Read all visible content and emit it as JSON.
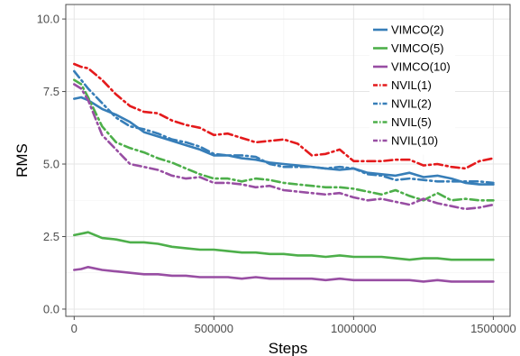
{
  "chart_data": {
    "type": "line",
    "title": "",
    "xlabel": "Steps",
    "ylabel": "RMS",
    "xlim": [
      -30000,
      1560000
    ],
    "ylim": [
      -0.25,
      10.5
    ],
    "xticks": [
      0,
      500000,
      1000000,
      1500000
    ],
    "xtick_labels": [
      "0",
      "500000",
      "1000000",
      "1500000"
    ],
    "yticks": [
      0.0,
      2.5,
      5.0,
      7.5,
      10.0
    ],
    "ytick_labels": [
      "0.0",
      "2.5",
      "5.0",
      "7.5",
      "10.0"
    ],
    "grid": true,
    "legend_position": "top-right",
    "series": [
      {
        "name": "VIMCO(2)",
        "color": "#377eb8",
        "dash": "solid",
        "x": [
          0,
          25000,
          50000,
          100000,
          150000,
          200000,
          250000,
          300000,
          350000,
          400000,
          450000,
          500000,
          550000,
          600000,
          650000,
          700000,
          750000,
          800000,
          850000,
          900000,
          950000,
          1000000,
          1050000,
          1100000,
          1150000,
          1200000,
          1250000,
          1300000,
          1350000,
          1400000,
          1450000,
          1500000
        ],
        "y": [
          7.25,
          7.3,
          7.2,
          6.9,
          6.7,
          6.45,
          6.1,
          5.95,
          5.8,
          5.65,
          5.5,
          5.3,
          5.3,
          5.2,
          5.15,
          5.05,
          5.0,
          4.95,
          4.9,
          4.85,
          4.8,
          4.85,
          4.7,
          4.65,
          4.6,
          4.7,
          4.55,
          4.6,
          4.5,
          4.35,
          4.3,
          4.3
        ]
      },
      {
        "name": "VIMCO(5)",
        "color": "#4daf4a",
        "dash": "solid",
        "x": [
          0,
          25000,
          50000,
          100000,
          150000,
          200000,
          250000,
          300000,
          350000,
          400000,
          450000,
          500000,
          550000,
          600000,
          650000,
          700000,
          750000,
          800000,
          850000,
          900000,
          950000,
          1000000,
          1050000,
          1100000,
          1150000,
          1200000,
          1250000,
          1300000,
          1350000,
          1400000,
          1450000,
          1500000
        ],
        "y": [
          2.55,
          2.6,
          2.65,
          2.45,
          2.4,
          2.3,
          2.3,
          2.25,
          2.15,
          2.1,
          2.05,
          2.05,
          2.0,
          1.95,
          1.95,
          1.9,
          1.9,
          1.85,
          1.85,
          1.8,
          1.85,
          1.8,
          1.8,
          1.8,
          1.75,
          1.7,
          1.75,
          1.75,
          1.7,
          1.7,
          1.7,
          1.7
        ]
      },
      {
        "name": "VIMCO(10)",
        "color": "#984ea3",
        "dash": "solid",
        "x": [
          0,
          25000,
          50000,
          100000,
          150000,
          200000,
          250000,
          300000,
          350000,
          400000,
          450000,
          500000,
          550000,
          600000,
          650000,
          700000,
          750000,
          800000,
          850000,
          900000,
          950000,
          1000000,
          1050000,
          1100000,
          1150000,
          1200000,
          1250000,
          1300000,
          1350000,
          1400000,
          1450000,
          1500000
        ],
        "y": [
          1.35,
          1.38,
          1.45,
          1.35,
          1.3,
          1.25,
          1.2,
          1.2,
          1.15,
          1.15,
          1.1,
          1.1,
          1.1,
          1.05,
          1.1,
          1.05,
          1.05,
          1.05,
          1.05,
          1.0,
          1.05,
          1.0,
          1.0,
          1.0,
          1.0,
          1.0,
          0.95,
          1.0,
          0.95,
          0.95,
          0.95,
          0.95
        ]
      },
      {
        "name": "NVIL(1)",
        "color": "#e41a1c",
        "dash": "dashdot",
        "x": [
          0,
          25000,
          50000,
          100000,
          150000,
          200000,
          250000,
          300000,
          350000,
          400000,
          450000,
          500000,
          550000,
          600000,
          650000,
          700000,
          750000,
          800000,
          850000,
          900000,
          950000,
          1000000,
          1050000,
          1100000,
          1150000,
          1200000,
          1250000,
          1300000,
          1350000,
          1400000,
          1450000,
          1500000
        ],
        "y": [
          8.45,
          8.35,
          8.3,
          7.9,
          7.4,
          7.0,
          6.8,
          6.75,
          6.5,
          6.35,
          6.25,
          6.0,
          6.05,
          5.9,
          5.75,
          5.8,
          5.85,
          5.7,
          5.3,
          5.35,
          5.5,
          5.1,
          5.1,
          5.1,
          5.15,
          5.15,
          4.95,
          5.0,
          4.9,
          4.85,
          5.1,
          5.2
        ]
      },
      {
        "name": "NVIL(2)",
        "color": "#377eb8",
        "dash": "dashdot",
        "x": [
          0,
          25000,
          50000,
          100000,
          150000,
          200000,
          250000,
          300000,
          350000,
          400000,
          450000,
          500000,
          550000,
          600000,
          650000,
          700000,
          750000,
          800000,
          850000,
          900000,
          950000,
          1000000,
          1050000,
          1100000,
          1150000,
          1200000,
          1250000,
          1300000,
          1350000,
          1400000,
          1450000,
          1500000
        ],
        "y": [
          8.2,
          7.9,
          7.6,
          7.1,
          6.6,
          6.3,
          6.2,
          6.05,
          5.85,
          5.75,
          5.6,
          5.35,
          5.3,
          5.3,
          5.25,
          5.0,
          4.9,
          4.9,
          4.9,
          4.85,
          4.9,
          4.85,
          4.65,
          4.6,
          4.45,
          4.5,
          4.45,
          4.4,
          4.4,
          4.4,
          4.4,
          4.35
        ]
      },
      {
        "name": "NVIL(5)",
        "color": "#4daf4a",
        "dash": "dashdot",
        "x": [
          0,
          25000,
          50000,
          100000,
          150000,
          200000,
          250000,
          300000,
          350000,
          400000,
          450000,
          500000,
          550000,
          600000,
          650000,
          700000,
          750000,
          800000,
          850000,
          900000,
          950000,
          1000000,
          1050000,
          1100000,
          1150000,
          1200000,
          1250000,
          1300000,
          1350000,
          1400000,
          1450000,
          1500000
        ],
        "y": [
          7.9,
          7.75,
          7.3,
          6.3,
          5.75,
          5.55,
          5.4,
          5.2,
          5.05,
          4.85,
          4.65,
          4.5,
          4.5,
          4.4,
          4.5,
          4.45,
          4.35,
          4.3,
          4.25,
          4.2,
          4.2,
          4.15,
          4.05,
          3.95,
          4.1,
          3.9,
          3.75,
          4.0,
          3.75,
          3.8,
          3.75,
          3.75
        ]
      },
      {
        "name": "NVIL(10)",
        "color": "#984ea3",
        "dash": "dashdot",
        "x": [
          0,
          25000,
          50000,
          100000,
          150000,
          200000,
          250000,
          300000,
          350000,
          400000,
          450000,
          500000,
          550000,
          600000,
          650000,
          700000,
          750000,
          800000,
          850000,
          900000,
          950000,
          1000000,
          1050000,
          1100000,
          1150000,
          1200000,
          1250000,
          1300000,
          1350000,
          1400000,
          1450000,
          1500000
        ],
        "y": [
          7.75,
          7.6,
          7.2,
          6.0,
          5.5,
          5.0,
          4.9,
          4.8,
          4.6,
          4.5,
          4.55,
          4.35,
          4.35,
          4.3,
          4.2,
          4.25,
          4.1,
          4.05,
          4.0,
          3.95,
          4.0,
          3.85,
          3.75,
          3.8,
          3.7,
          3.6,
          3.8,
          3.65,
          3.55,
          3.45,
          3.5,
          3.6
        ]
      }
    ]
  }
}
